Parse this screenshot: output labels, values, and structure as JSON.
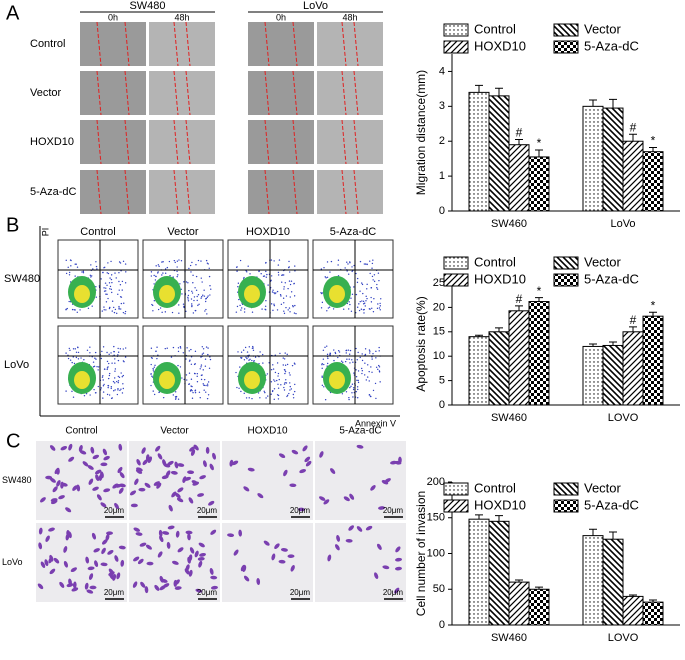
{
  "panels": {
    "a": "A",
    "b": "B",
    "c": "C"
  },
  "migration": {
    "lines": [
      "SW480",
      "LoVo"
    ],
    "times": [
      "0h",
      "48h"
    ],
    "rows": [
      "Control",
      "Vector",
      "HOXD10",
      "5-Aza-dC"
    ]
  },
  "flow": {
    "columns": [
      "Control",
      "Vector",
      "HOXD10",
      "5-Aza-dC"
    ],
    "rows": [
      "SW480",
      "LoVo"
    ],
    "y_axis": "PI",
    "x_axis": "Annexin V"
  },
  "invasion": {
    "columns": [
      "Control",
      "Vector",
      "HOXD10",
      "5-Aza-dC"
    ],
    "rows": [
      "SW480",
      "LoVo"
    ],
    "scale_bar": "20μm"
  },
  "chart_data": [
    {
      "type": "bar",
      "y_label": "Migration distance(mm)",
      "categories": [
        "SW460",
        "LoVo"
      ],
      "ylim": [
        0,
        4.5
      ],
      "yticks": [
        0,
        1,
        2,
        3,
        4
      ],
      "legend": "top",
      "series": [
        {
          "name": "Control",
          "pattern": "dots",
          "values": [
            3.4,
            3.0
          ],
          "errors": [
            0.2,
            0.18
          ]
        },
        {
          "name": "Vector",
          "pattern": "back",
          "values": [
            3.3,
            2.95
          ],
          "errors": [
            0.22,
            0.25
          ]
        },
        {
          "name": "HOXD10",
          "pattern": "fwd",
          "values": [
            1.9,
            2.0
          ],
          "errors": [
            0.15,
            0.2
          ],
          "annotation": "#"
        },
        {
          "name": "5-Aza-dC",
          "pattern": "check",
          "values": [
            1.55,
            1.7
          ],
          "errors": [
            0.2,
            0.12
          ],
          "annotation": "*"
        }
      ]
    },
    {
      "type": "bar",
      "y_label": "Apoptosis rate(%)",
      "categories": [
        "SW460",
        "LOVO"
      ],
      "ylim": [
        0,
        25
      ],
      "yticks": [
        0,
        5,
        10,
        15,
        20,
        25
      ],
      "legend": "top",
      "series": [
        {
          "name": "Control",
          "pattern": "dots",
          "values": [
            14,
            12
          ],
          "errors": [
            0.3,
            0.5
          ]
        },
        {
          "name": "Vector",
          "pattern": "back",
          "values": [
            15,
            12.2
          ],
          "errors": [
            0.8,
            0.7
          ]
        },
        {
          "name": "HOXD10",
          "pattern": "fwd",
          "values": [
            19.3,
            15
          ],
          "errors": [
            1.0,
            1.0
          ],
          "annotation": "#"
        },
        {
          "name": "5-Aza-dC",
          "pattern": "check",
          "values": [
            21.2,
            18.2
          ],
          "errors": [
            0.8,
            0.8
          ],
          "annotation": "*"
        }
      ]
    },
    {
      "type": "bar",
      "y_label": "Cell number of invasion",
      "categories": [
        "SW460",
        "LOVO"
      ],
      "ylim": [
        0,
        200
      ],
      "yticks": [
        0,
        50,
        100,
        150,
        200
      ],
      "legend": "top",
      "series": [
        {
          "name": "Control",
          "pattern": "dots",
          "values": [
            148,
            125
          ],
          "errors": [
            6,
            9
          ]
        },
        {
          "name": "Vector",
          "pattern": "back",
          "values": [
            145,
            120
          ],
          "errors": [
            8,
            10
          ]
        },
        {
          "name": "HOXD10",
          "pattern": "fwd",
          "values": [
            60,
            40
          ],
          "errors": [
            3,
            2
          ]
        },
        {
          "name": "5-Aza-dC",
          "pattern": "check",
          "values": [
            50,
            32
          ],
          "errors": [
            3,
            3
          ]
        }
      ]
    }
  ]
}
